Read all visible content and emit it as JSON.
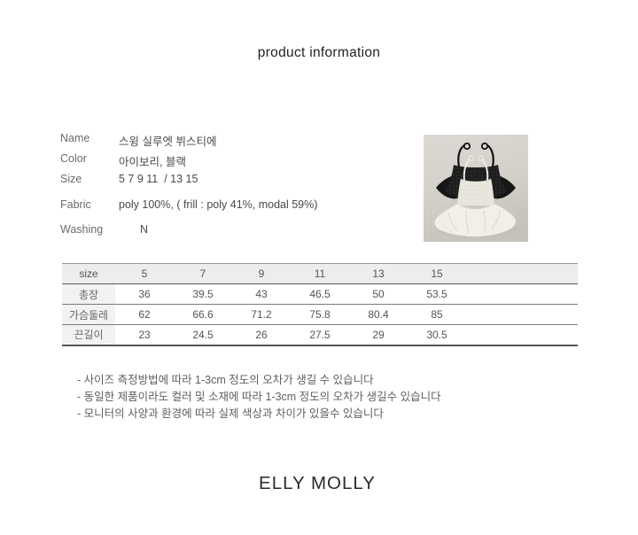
{
  "title": "product information",
  "info": {
    "rows": [
      {
        "label": "Name",
        "value": "스윙 실루엣 뷔스티에"
      },
      {
        "label": "Color",
        "value": "아이보리, 블랙"
      },
      {
        "label": "Size",
        "value": "5 7 9 11  / 13 15"
      },
      {
        "label": "Fabric",
        "value": "poly 100%, ( frill : poly 41%, modal 59%)"
      },
      {
        "label": "Washing",
        "value": "N"
      }
    ]
  },
  "product_image": {
    "description": "flat-lay photo of two swing silhouette bustier camisole tops, black mesh one behind and ivory lace one with large frill hem in front",
    "background_color": "#d5d1cb",
    "black_item_color": "#1c1c1c",
    "ivory_item_color": "#f1efe8"
  },
  "size_table": {
    "header": [
      "size",
      "5",
      "7",
      "9",
      "11",
      "13",
      "15"
    ],
    "rows": [
      {
        "label": "총장",
        "values": [
          "36",
          "39.5",
          "43",
          "46.5",
          "50",
          "53.5"
        ]
      },
      {
        "label": "가슴둘레",
        "values": [
          "62",
          "66.6",
          "71.2",
          "75.8",
          "80.4",
          "85"
        ]
      },
      {
        "label": "끈길이",
        "values": [
          "23",
          "24.5",
          "26",
          "27.5",
          "29",
          "30.5"
        ]
      }
    ]
  },
  "notes": [
    "- 사이즈 측정방법에 따라 1-3cm 정도의 오차가 생길 수 있습니다",
    "- 동일한 제품이라도 컬러 및 소재에 따라 1-3cm 정도의 오차가 생길수 있습니다",
    "- 모니터의 사양과 환경에 따라 실제 색상과 차이가 있을수 있습니다"
  ],
  "brand": "ELLY MOLLY",
  "colors": {
    "page_background": "#ffffff",
    "table_header_background": "#ededed",
    "table_label_background": "#f2f2f2",
    "table_border": "#777777",
    "text_primary": "#4a4a4a",
    "text_secondary": "#666666"
  }
}
